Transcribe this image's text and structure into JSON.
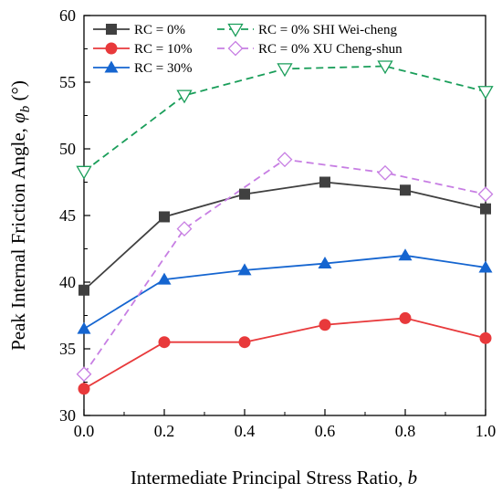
{
  "chart_data": {
    "type": "line",
    "title": "",
    "xlabel": "Intermediate Principal Stress Ratio, ",
    "xlabel_var": "b",
    "ylabel": "Peak Internal Friction Angle, ",
    "ylabel_var": "φ",
    "ylabel_sub": "b",
    "ylabel_unit": " (°)",
    "xlim": [
      0.0,
      1.0
    ],
    "ylim": [
      30,
      60
    ],
    "xticks": [
      "0.0",
      "0.2",
      "0.4",
      "0.6",
      "0.8",
      "1.0"
    ],
    "yticks": [
      "30",
      "35",
      "40",
      "45",
      "50",
      "55",
      "60"
    ],
    "grid": false,
    "legend_position": "top-left",
    "series": [
      {
        "name": "RC = 0%",
        "color": "#404040",
        "marker": "square",
        "dash": "solid",
        "x": [
          0.0,
          0.2,
          0.4,
          0.6,
          0.8,
          1.0
        ],
        "y": [
          39.4,
          44.9,
          46.6,
          47.5,
          46.9,
          45.5
        ]
      },
      {
        "name": "RC = 10%",
        "color": "#e8393b",
        "marker": "circle",
        "dash": "solid",
        "x": [
          0.0,
          0.2,
          0.4,
          0.6,
          0.8,
          1.0
        ],
        "y": [
          32.0,
          35.5,
          35.5,
          36.8,
          37.3,
          35.8
        ]
      },
      {
        "name": "RC = 30%",
        "color": "#1565d0",
        "marker": "triangle-up",
        "dash": "solid",
        "x": [
          0.0,
          0.2,
          0.4,
          0.6,
          0.8,
          1.0
        ],
        "y": [
          36.5,
          40.2,
          40.9,
          41.4,
          42.0,
          41.1
        ]
      },
      {
        "name": "RC = 0% SHI Wei-cheng",
        "color": "#1a9e5a",
        "marker": "triangle-down-open",
        "dash": "dashed",
        "x": [
          0.0,
          0.25,
          0.5,
          0.75,
          1.0
        ],
        "y": [
          48.3,
          54.0,
          56.0,
          56.2,
          54.3
        ]
      },
      {
        "name": "RC = 0% XU Cheng-shun",
        "color": "#c77ee3",
        "marker": "diamond-open",
        "dash": "dashed",
        "x": [
          0.0,
          0.25,
          0.5,
          0.75,
          1.0
        ],
        "y": [
          33.1,
          44.0,
          49.2,
          48.2,
          46.6
        ]
      }
    ]
  }
}
